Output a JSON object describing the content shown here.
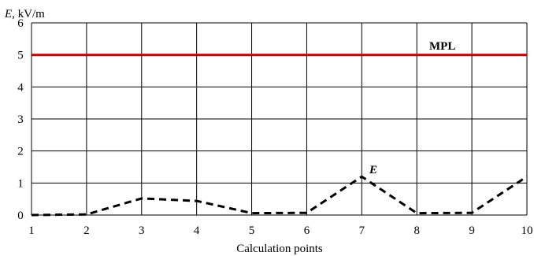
{
  "chart_data": {
    "type": "line",
    "title": "",
    "xlabel": "Calculation points",
    "ylabel_symbol": "E",
    "ylabel_unit": ", kV/m",
    "x": [
      1,
      2,
      3,
      4,
      5,
      6,
      7,
      8,
      9,
      10
    ],
    "xlim": [
      1,
      10
    ],
    "ylim": [
      0,
      6
    ],
    "x_ticks": [
      1,
      2,
      3,
      4,
      5,
      6,
      7,
      8,
      9,
      10
    ],
    "y_ticks": [
      0,
      1,
      2,
      3,
      4,
      5,
      6
    ],
    "grid": true,
    "series": [
      {
        "name": "E",
        "style": "dashed",
        "color": "#000000",
        "values": [
          0.0,
          0.02,
          0.52,
          0.44,
          0.06,
          0.07,
          1.2,
          0.06,
          0.07,
          1.2
        ]
      },
      {
        "name": "MPL",
        "style": "solid",
        "color": "#c00000",
        "values": [
          5,
          5,
          5,
          5,
          5,
          5,
          5,
          5,
          5,
          5
        ]
      }
    ]
  }
}
